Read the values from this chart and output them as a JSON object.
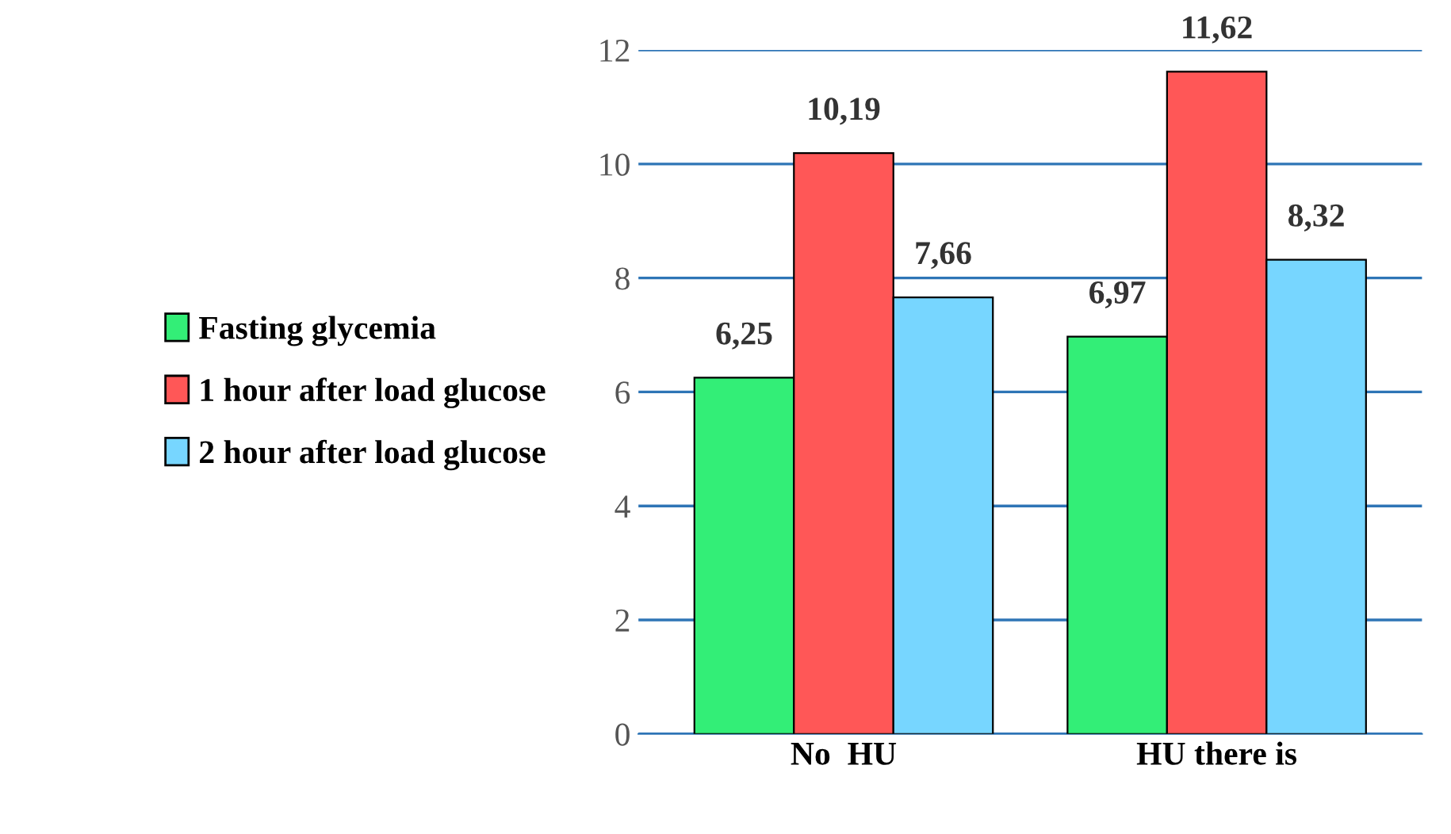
{
  "chart_data": {
    "type": "bar",
    "categories": [
      "No  HU",
      "HU there is"
    ],
    "series": [
      {
        "name": "Fasting glycemia",
        "color": "#33ee77",
        "values": [
          6.25,
          6.97
        ],
        "value_labels": [
          "6,25",
          "6,97"
        ]
      },
      {
        "name": "1 hour after load glucose",
        "color": "#ff5757",
        "values": [
          10.19,
          11.62
        ],
        "value_labels": [
          "10,19",
          "11,62"
        ]
      },
      {
        "name": "2 hour after load glucose",
        "color": "#77d6ff",
        "values": [
          7.66,
          8.32
        ],
        "value_labels": [
          "7,66",
          "8,32"
        ]
      }
    ],
    "ylim": [
      0,
      12
    ],
    "yticks": [
      0,
      2,
      4,
      6,
      8,
      10,
      12
    ],
    "grid": "y",
    "legend": "left"
  }
}
